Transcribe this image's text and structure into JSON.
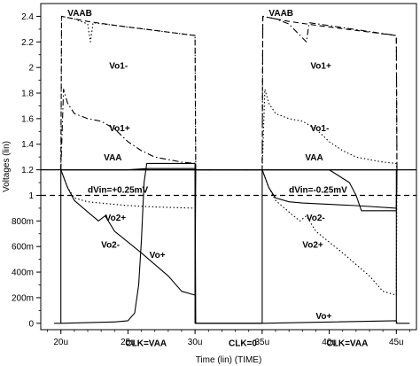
{
  "chart_data": {
    "type": "line",
    "xlabel": "Time (lin) (TIME)",
    "ylabel": "Voltages (lin)",
    "x_unit": "s",
    "xlim": [
      1.85e-05,
      4.65e-05
    ],
    "ylim": [
      -0.05,
      2.5
    ],
    "x_ticks": [
      {
        "v": 2e-05,
        "label": "20u"
      },
      {
        "v": 2.5e-05,
        "label": "25u"
      },
      {
        "v": 3e-05,
        "label": "30u"
      },
      {
        "v": 3.5e-05,
        "label": "35u"
      },
      {
        "v": 4e-05,
        "label": "40u"
      },
      {
        "v": 4.5e-05,
        "label": "45u"
      }
    ],
    "y_ticks": [
      {
        "v": 0,
        "label": "0"
      },
      {
        "v": 0.2,
        "label": "200m"
      },
      {
        "v": 0.4,
        "label": "400m"
      },
      {
        "v": 0.6,
        "label": "600m"
      },
      {
        "v": 0.8,
        "label": "800m"
      },
      {
        "v": 1.0,
        "label": "1"
      },
      {
        "v": 1.2,
        "label": "1.2"
      },
      {
        "v": 1.4,
        "label": "1.4"
      },
      {
        "v": 1.6,
        "label": "1.6"
      },
      {
        "v": 1.8,
        "label": "1.8"
      },
      {
        "v": 2.0,
        "label": "2"
      },
      {
        "v": 2.2,
        "label": "2.2"
      },
      {
        "v": 2.4,
        "label": "2.4"
      }
    ],
    "series": [
      {
        "name": "VAAB",
        "style": "dashed",
        "points": [
          [
            2e-05,
            1.2
          ],
          [
            2.005e-05,
            2.4
          ],
          [
            2.1e-05,
            2.38
          ],
          [
            2.2e-05,
            2.36
          ],
          [
            2.4e-05,
            2.33
          ],
          [
            2.7e-05,
            2.29
          ],
          [
            3e-05,
            2.25
          ],
          [
            3.005e-05,
            1.2
          ],
          [
            3.5e-05,
            1.2
          ],
          [
            3.505e-05,
            2.4
          ],
          [
            3.6e-05,
            2.38
          ],
          [
            3.7e-05,
            2.36
          ],
          [
            3.9e-05,
            2.33
          ],
          [
            4.2e-05,
            2.29
          ],
          [
            4.5e-05,
            2.25
          ],
          [
            4.505e-05,
            1.2
          ]
        ]
      },
      {
        "name": "Vo1-",
        "style": "dotted",
        "points": [
          [
            2e-05,
            1.2
          ],
          [
            2.005e-05,
            2.4
          ],
          [
            2.1e-05,
            2.38
          ],
          [
            2.2e-05,
            2.34
          ],
          [
            2.22e-05,
            2.2
          ],
          [
            2.24e-05,
            2.35
          ],
          [
            3e-05,
            2.25
          ],
          [
            3.005e-05,
            1.2
          ],
          [
            3.5e-05,
            1.2
          ],
          [
            3.52e-05,
            1.83
          ],
          [
            3.55e-05,
            1.72
          ],
          [
            3.6e-05,
            1.64
          ],
          [
            3.7e-05,
            1.6
          ],
          [
            3.8e-05,
            1.58
          ],
          [
            3.9e-05,
            1.52
          ],
          [
            4e-05,
            1.42
          ],
          [
            4.1e-05,
            1.35
          ],
          [
            4.2e-05,
            1.3
          ],
          [
            4.3e-05,
            1.28
          ],
          [
            4.4e-05,
            1.26
          ],
          [
            4.5e-05,
            1.25
          ],
          [
            4.505e-05,
            1.2
          ]
        ]
      },
      {
        "name": "Vo1+",
        "style": "dashdot",
        "points": [
          [
            2e-05,
            1.2
          ],
          [
            2.02e-05,
            1.83
          ],
          [
            2.05e-05,
            1.72
          ],
          [
            2.1e-05,
            1.64
          ],
          [
            2.2e-05,
            1.6
          ],
          [
            2.3e-05,
            1.58
          ],
          [
            2.4e-05,
            1.52
          ],
          [
            2.5e-05,
            1.42
          ],
          [
            2.6e-05,
            1.35
          ],
          [
            2.7e-05,
            1.3
          ],
          [
            2.8e-05,
            1.28
          ],
          [
            2.9e-05,
            1.26
          ],
          [
            3e-05,
            1.25
          ],
          [
            3.005e-05,
            1.2
          ],
          [
            3.5e-05,
            1.2
          ],
          [
            3.505e-05,
            2.4
          ],
          [
            3.6e-05,
            2.38
          ],
          [
            3.7e-05,
            2.34
          ],
          [
            3.83e-05,
            2.2
          ],
          [
            3.85e-05,
            2.35
          ],
          [
            4.5e-05,
            2.25
          ],
          [
            4.505e-05,
            1.2
          ]
        ]
      },
      {
        "name": "VAA",
        "style": "solid",
        "points": [
          [
            2e-05,
            1.2
          ],
          [
            3e-05,
            1.2
          ],
          [
            3.005e-05,
            1.2
          ],
          [
            3.5e-05,
            1.2
          ],
          [
            4.5e-05,
            1.2
          ]
        ]
      },
      {
        "name": "Vo2+",
        "style": "dotted",
        "points": [
          [
            2e-05,
            1.2
          ],
          [
            2.05e-05,
            1.06
          ],
          [
            2.1e-05,
            0.98
          ],
          [
            2.2e-05,
            0.95
          ],
          [
            2.3e-05,
            0.94
          ],
          [
            2.4e-05,
            0.93
          ],
          [
            2.5e-05,
            0.92
          ],
          [
            2.7e-05,
            0.91
          ],
          [
            3e-05,
            0.9
          ],
          [
            3.005e-05,
            1.2
          ],
          [
            3.5e-05,
            1.2
          ],
          [
            3.55e-05,
            1.06
          ],
          [
            3.6e-05,
            0.96
          ],
          [
            3.7e-05,
            0.87
          ],
          [
            3.78e-05,
            0.8
          ],
          [
            3.83e-05,
            0.84
          ],
          [
            3.9e-05,
            0.72
          ],
          [
            4.1e-05,
            0.55
          ],
          [
            4.3e-05,
            0.37
          ],
          [
            4.4e-05,
            0.25
          ],
          [
            4.5e-05,
            0.22
          ],
          [
            4.505e-05,
            1.2
          ]
        ]
      },
      {
        "name": "Vo2-",
        "style": "solid",
        "points": [
          [
            2e-05,
            1.2
          ],
          [
            2.05e-05,
            1.06
          ],
          [
            2.1e-05,
            0.96
          ],
          [
            2.2e-05,
            0.87
          ],
          [
            2.28e-05,
            0.8
          ],
          [
            2.33e-05,
            0.84
          ],
          [
            2.4e-05,
            0.72
          ],
          [
            2.6e-05,
            0.55
          ],
          [
            2.8e-05,
            0.37
          ],
          [
            2.9e-05,
            0.25
          ],
          [
            3e-05,
            0.22
          ],
          [
            3.005e-05,
            1.2
          ],
          [
            3.5e-05,
            1.2
          ],
          [
            3.55e-05,
            1.06
          ],
          [
            3.6e-05,
            0.98
          ],
          [
            3.7e-05,
            0.95
          ],
          [
            3.8e-05,
            0.94
          ],
          [
            4e-05,
            0.93
          ],
          [
            4.2e-05,
            0.92
          ],
          [
            4.5e-05,
            0.9
          ],
          [
            4.505e-05,
            1.2
          ]
        ]
      },
      {
        "name": "Vo+",
        "style": "solid",
        "points": [
          [
            2e-05,
            0
          ],
          [
            2.4e-05,
            0.01
          ],
          [
            2.5e-05,
            0.02
          ],
          [
            2.55e-05,
            0.08
          ],
          [
            2.58e-05,
            0.3
          ],
          [
            2.6e-05,
            0.65
          ],
          [
            2.62e-05,
            1.1
          ],
          [
            2.64e-05,
            1.25
          ],
          [
            3e-05,
            1.25
          ],
          [
            3.005e-05,
            0
          ],
          [
            3.5e-05,
            0
          ],
          [
            4.5e-05,
            0.02
          ],
          [
            4.505e-05,
            0
          ]
        ]
      },
      {
        "name": "",
        "style": "solid",
        "points": [
          [
            2e-05,
            1.2
          ],
          [
            2.5e-05,
            1.2
          ],
          [
            2.65e-05,
            1.21
          ],
          [
            3e-05,
            1.21
          ],
          [
            3.005e-05,
            1.2
          ],
          [
            3.5e-05,
            1.2
          ],
          [
            4e-05,
            1.2
          ],
          [
            4.15e-05,
            1.1
          ],
          [
            4.2e-05,
            1.0
          ],
          [
            4.24e-05,
            0.88
          ],
          [
            4.5e-05,
            0.88
          ],
          [
            4.505e-05,
            1.2
          ]
        ]
      },
      {
        "name": "CLK",
        "style": "solid",
        "points": [
          [
            1.95e-05,
            0
          ],
          [
            2e-05,
            0
          ],
          [
            2e-05,
            1.2
          ],
          [
            3e-05,
            1.2
          ],
          [
            3e-05,
            0
          ],
          [
            3.5e-05,
            0
          ],
          [
            3.5e-05,
            1.2
          ],
          [
            4.5e-05,
            1.2
          ],
          [
            4.5e-05,
            0
          ],
          [
            4.6e-05,
            0
          ]
        ]
      }
    ],
    "reference_lines": [
      {
        "y": 1.2,
        "style": "solid"
      },
      {
        "y": 1.0,
        "style": "dashed"
      }
    ],
    "annotations": [
      {
        "text": "VAAB",
        "x": 2.05e-05,
        "y": 2.43
      },
      {
        "text": "VAAB",
        "x": 3.55e-05,
        "y": 2.43
      },
      {
        "text": "Vo1-",
        "x": 2.36e-05,
        "y": 2.02
      },
      {
        "text": "Vo1+",
        "x": 3.86e-05,
        "y": 2.02
      },
      {
        "text": "Vo1+",
        "x": 2.36e-05,
        "y": 1.53
      },
      {
        "text": "Vo1-",
        "x": 3.86e-05,
        "y": 1.53
      },
      {
        "text": "VAA",
        "x": 2.32e-05,
        "y": 1.3
      },
      {
        "text": "VAA",
        "x": 3.82e-05,
        "y": 1.3
      },
      {
        "text": "dVin=+0.25mV",
        "x": 2.2e-05,
        "y": 1.05
      },
      {
        "text": "dVin=-0.25mV",
        "x": 3.7e-05,
        "y": 1.05
      },
      {
        "text": "Vo2+",
        "x": 2.33e-05,
        "y": 0.83
      },
      {
        "text": "Vo2-",
        "x": 3.83e-05,
        "y": 0.83
      },
      {
        "text": "Vo2-",
        "x": 2.3e-05,
        "y": 0.62
      },
      {
        "text": "Vo2+",
        "x": 3.8e-05,
        "y": 0.62
      },
      {
        "text": "Vo+",
        "x": 2.66e-05,
        "y": 0.54
      },
      {
        "text": "Vo+",
        "x": 3.9e-05,
        "y": 0.06
      },
      {
        "text": "CLK=VAA",
        "x": 2.48e-05,
        "y": -0.15
      },
      {
        "text": "CLK=0",
        "x": 3.25e-05,
        "y": -0.15
      },
      {
        "text": "CLK=VAA",
        "x": 3.98e-05,
        "y": -0.15
      }
    ]
  }
}
